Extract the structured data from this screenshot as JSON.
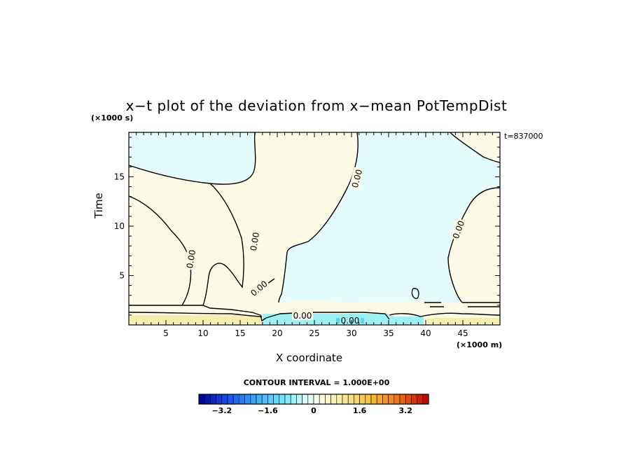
{
  "chart_data": {
    "type": "heatmap",
    "title": "x−t plot of the deviation from x−mean PotTempDist",
    "xlabel": "X coordinate",
    "ylabel": "Time",
    "x_unit": "(×1000 m)",
    "y_unit": "(×1000 s)",
    "time_tag": "t=837000",
    "xlim": [
      0,
      50
    ],
    "ylim": [
      0,
      19.5
    ],
    "x_ticks": [
      5,
      10,
      15,
      20,
      25,
      30,
      35,
      40,
      45
    ],
    "y_ticks": [
      5,
      10,
      15
    ],
    "contour_interval_text": "CONTOUR INTERVAL = 1.000E+00",
    "contour_labels": [
      "0.00",
      "0.00",
      "0.00",
      "0.00",
      "0.00",
      "0.00",
      "0.00"
    ],
    "colorbar": {
      "min": -4.0,
      "max": 4.0,
      "step": 0.2,
      "tick_values": [
        -3.2,
        -1.6,
        0,
        1.6,
        3.2
      ],
      "tick_labels": [
        "−3.2",
        "−1.6",
        "0",
        "1.6",
        "3.2"
      ]
    },
    "colors": {
      "positive_near_zero": "#fdfbe8",
      "negative_near_zero": "#e4fcfc",
      "positive_band": "#f6eeb0",
      "negative_band": "#9ef0f4",
      "strong_negative": "#5ad8f0",
      "contour_line": "#000000"
    }
  }
}
